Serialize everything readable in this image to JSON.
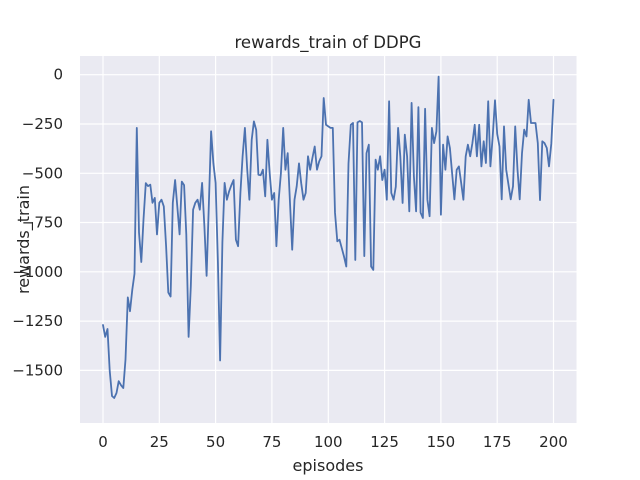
{
  "figure": {
    "title": "rewards_train of DDPG",
    "xlabel": "episodes",
    "ylabel": "rewards_train"
  },
  "chart_data": {
    "type": "line",
    "title": "rewards_train of DDPG",
    "xlabel": "episodes",
    "ylabel": "rewards_train",
    "series_name": "rewards_train",
    "x_start": 0,
    "x_step": 1,
    "x_end": 200,
    "values": [
      -1270,
      -1330,
      -1290,
      -1500,
      -1630,
      -1640,
      -1615,
      -1555,
      -1575,
      -1590,
      -1445,
      -1130,
      -1200,
      -1090,
      -1010,
      -270,
      -800,
      -950,
      -735,
      -550,
      -565,
      -558,
      -650,
      -625,
      -810,
      -650,
      -634,
      -668,
      -870,
      -1105,
      -1125,
      -650,
      -534,
      -668,
      -810,
      -542,
      -560,
      -810,
      -1330,
      -1075,
      -685,
      -650,
      -634,
      -685,
      -549,
      -770,
      -1020,
      -650,
      -287,
      -450,
      -549,
      -950,
      -1450,
      -850,
      -549,
      -634,
      -592,
      -560,
      -534,
      -837,
      -870,
      -600,
      -414,
      -270,
      -480,
      -634,
      -330,
      -237,
      -280,
      -507,
      -510,
      -482,
      -617,
      -330,
      -500,
      -634,
      -600,
      -870,
      -634,
      -500,
      -270,
      -482,
      -398,
      -651,
      -888,
      -634,
      -566,
      -450,
      -550,
      -634,
      -600,
      -414,
      -482,
      -420,
      -364,
      -482,
      -440,
      -414,
      -118,
      -254,
      -262,
      -270,
      -270,
      -700,
      -845,
      -837,
      -880,
      -922,
      -973,
      -450,
      -254,
      -245,
      -940,
      -242,
      -235,
      -242,
      -920,
      -398,
      -355,
      -973,
      -990,
      -431,
      -482,
      -414,
      -534,
      -482,
      -634,
      -135,
      -600,
      -634,
      -568,
      -270,
      -414,
      -651,
      -304,
      -414,
      -693,
      -143,
      -516,
      -693,
      -165,
      -700,
      -727,
      -173,
      -634,
      -718,
      -270,
      -347,
      -287,
      -10,
      -710,
      -355,
      -482,
      -313,
      -372,
      -499,
      -632,
      -482,
      -465,
      -550,
      -634,
      -414,
      -355,
      -414,
      -347,
      -254,
      -414,
      -254,
      -465,
      -338,
      -448,
      -135,
      -465,
      -313,
      -130,
      -300,
      -364,
      -632,
      -262,
      -482,
      -558,
      -632,
      -566,
      -262,
      -482,
      -632,
      -398,
      -279,
      -313,
      -127,
      -245,
      -245,
      -245,
      -347,
      -636,
      -338,
      -347,
      -372,
      -465,
      -350,
      -127
    ],
    "xticks": [
      0,
      25,
      50,
      75,
      100,
      125,
      150,
      175,
      200
    ],
    "xtick_labels": [
      "0",
      "25",
      "50",
      "75",
      "100",
      "125",
      "150",
      "175",
      "200"
    ],
    "yticks": [
      0,
      -250,
      -500,
      -750,
      -1000,
      -1250,
      -1500
    ],
    "ytick_labels": [
      "0",
      "−250",
      "−500",
      "−750",
      "−1000",
      "−1250",
      "−1500"
    ],
    "xlim": [
      -10.2,
      210.2
    ],
    "ylim": [
      -1767,
      95
    ],
    "grid": true,
    "legend_position": "none",
    "line_color": "#4c72b0",
    "plot_bg_color": "#eaeaf2",
    "grid_color": "#ffffff",
    "text_color": "#262626"
  }
}
